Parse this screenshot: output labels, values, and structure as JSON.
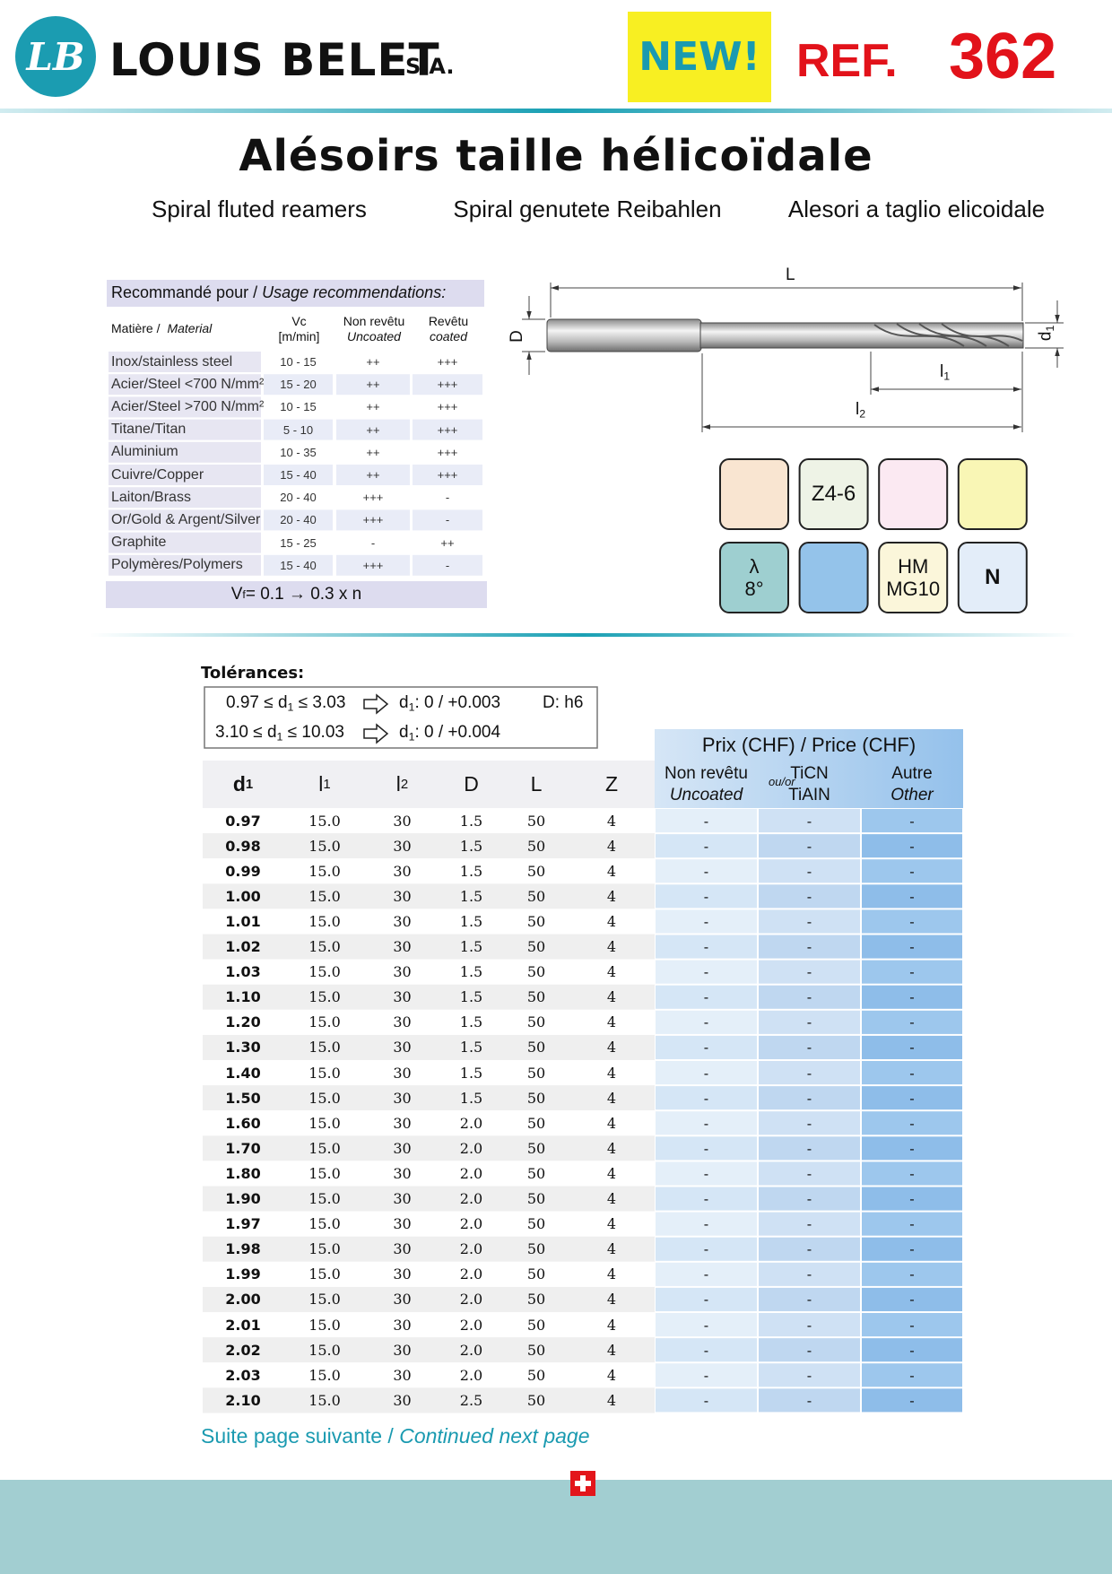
{
  "header": {
    "logo": "LB",
    "brand": "LOUIS BELET",
    "brand_suffix": "S.A.",
    "badge": "NEW!",
    "ref_label": "REF.",
    "ref_number": "362"
  },
  "title": "Alésoirs taille hélicoïdale",
  "subtitles": [
    "Spiral fluted reamers",
    "Spiral genutete Reibahlen",
    "Alesori a taglio elicoidale"
  ],
  "recommendations": {
    "heading": "Recommandé pour /",
    "heading_en": "Usage recommendations:",
    "columns": [
      [
        "Matière /",
        "Material"
      ],
      [
        "Vc",
        "[m/min]"
      ],
      [
        "Non revêtu",
        "Uncoated"
      ],
      [
        "Revêtu",
        "coated"
      ]
    ],
    "rows": [
      [
        "Inox/stainless steel",
        "10 - 15",
        "++",
        "+++"
      ],
      [
        "Acier/Steel <700 N/mm²",
        "15 - 20",
        "++",
        "+++"
      ],
      [
        "Acier/Steel >700 N/mm²",
        "10 - 15",
        "++",
        "+++"
      ],
      [
        "Titane/Titan",
        "5 - 10",
        "++",
        "+++"
      ],
      [
        "Aluminium",
        "10 - 35",
        "++",
        "+++"
      ],
      [
        "Cuivre/Copper",
        "15 - 40",
        "++",
        "+++"
      ],
      [
        "Laiton/Brass",
        "20 - 40",
        "+++",
        "-"
      ],
      [
        "Or/Gold & Argent/Silver",
        "20 - 40",
        "+++",
        "-"
      ],
      [
        "Graphite",
        "15 - 25",
        "-",
        "++"
      ],
      [
        "Polymères/Polymers",
        "15 - 40",
        "+++",
        "-"
      ]
    ],
    "feed": [
      "V",
      {
        "sub": "f"
      },
      " = 0.1 → 0.3 x n"
    ]
  },
  "dimensions": {
    "L": [
      "L"
    ],
    "D": [
      "D"
    ],
    "d1": [
      "d",
      {
        "sub": "1"
      }
    ],
    "l1": [
      "l",
      {
        "sub": "1"
      }
    ],
    "l2": [
      "l",
      {
        "sub": "2"
      }
    ]
  },
  "icons": [
    {
      "color": "#f9e5d1"
    },
    {
      "color": "#eef3e6",
      "lines": [
        "Z4-6"
      ]
    },
    {
      "color": "#fbe9f2"
    },
    {
      "color": "#f9f6b5"
    },
    {
      "color": "#9ecfd0",
      "lines": [
        "λ",
        "8°"
      ]
    },
    {
      "color": "#94c3ea"
    },
    {
      "color": "#fbf6da",
      "lines": [
        "HM",
        "MG10"
      ]
    },
    {
      "color": "#e3edf9",
      "lines": [
        "N"
      ]
    }
  ],
  "tolerances": {
    "title": "Tolérances:",
    "lines": [
      {
        "range": [
          "0.97 ≤ d",
          {
            "sub": "1"
          },
          " ≤ 3.03"
        ],
        "tolerance": [
          "d",
          {
            "sub": "1"
          },
          ": 0 / +0.003"
        ],
        "extra": "D: h6"
      },
      {
        "range": [
          "3.10 ≤ d",
          {
            "sub": "1"
          },
          " ≤ 10.03"
        ],
        "tolerance": [
          "d",
          {
            "sub": "1"
          },
          ": 0 / +0.004"
        ]
      }
    ]
  },
  "table": {
    "price_header": "Prix (CHF) / Price (CHF)",
    "columns": [
      [
        "d",
        {
          "sub": "1"
        }
      ],
      [
        "l",
        {
          "sub": "1"
        }
      ],
      [
        "l",
        {
          "sub": "2"
        }
      ],
      [
        "D"
      ],
      [
        "L"
      ],
      [
        "Z"
      ]
    ],
    "price_columns": [
      [
        "Non revêtu",
        "Uncoated"
      ],
      [
        "TiCN",
        "TiAIN"
      ],
      [
        "Autre",
        "Other"
      ]
    ],
    "or_label": "ou/or",
    "rows": [
      [
        "0.97",
        "15.0",
        "30",
        "1.5",
        "50",
        "4",
        "-",
        "-",
        "-"
      ],
      [
        "0.98",
        "15.0",
        "30",
        "1.5",
        "50",
        "4",
        "-",
        "-",
        "-"
      ],
      [
        "0.99",
        "15.0",
        "30",
        "1.5",
        "50",
        "4",
        "-",
        "-",
        "-"
      ],
      [
        "1.00",
        "15.0",
        "30",
        "1.5",
        "50",
        "4",
        "-",
        "-",
        "-"
      ],
      [
        "1.01",
        "15.0",
        "30",
        "1.5",
        "50",
        "4",
        "-",
        "-",
        "-"
      ],
      [
        "1.02",
        "15.0",
        "30",
        "1.5",
        "50",
        "4",
        "-",
        "-",
        "-"
      ],
      [
        "1.03",
        "15.0",
        "30",
        "1.5",
        "50",
        "4",
        "-",
        "-",
        "-"
      ],
      [
        "1.10",
        "15.0",
        "30",
        "1.5",
        "50",
        "4",
        "-",
        "-",
        "-"
      ],
      [
        "1.20",
        "15.0",
        "30",
        "1.5",
        "50",
        "4",
        "-",
        "-",
        "-"
      ],
      [
        "1.30",
        "15.0",
        "30",
        "1.5",
        "50",
        "4",
        "-",
        "-",
        "-"
      ],
      [
        "1.40",
        "15.0",
        "30",
        "1.5",
        "50",
        "4",
        "-",
        "-",
        "-"
      ],
      [
        "1.50",
        "15.0",
        "30",
        "1.5",
        "50",
        "4",
        "-",
        "-",
        "-"
      ],
      [
        "1.60",
        "15.0",
        "30",
        "2.0",
        "50",
        "4",
        "-",
        "-",
        "-"
      ],
      [
        "1.70",
        "15.0",
        "30",
        "2.0",
        "50",
        "4",
        "-",
        "-",
        "-"
      ],
      [
        "1.80",
        "15.0",
        "30",
        "2.0",
        "50",
        "4",
        "-",
        "-",
        "-"
      ],
      [
        "1.90",
        "15.0",
        "30",
        "2.0",
        "50",
        "4",
        "-",
        "-",
        "-"
      ],
      [
        "1.97",
        "15.0",
        "30",
        "2.0",
        "50",
        "4",
        "-",
        "-",
        "-"
      ],
      [
        "1.98",
        "15.0",
        "30",
        "2.0",
        "50",
        "4",
        "-",
        "-",
        "-"
      ],
      [
        "1.99",
        "15.0",
        "30",
        "2.0",
        "50",
        "4",
        "-",
        "-",
        "-"
      ],
      [
        "2.00",
        "15.0",
        "30",
        "2.0",
        "50",
        "4",
        "-",
        "-",
        "-"
      ],
      [
        "2.01",
        "15.0",
        "30",
        "2.0",
        "50",
        "4",
        "-",
        "-",
        "-"
      ],
      [
        "2.02",
        "15.0",
        "30",
        "2.0",
        "50",
        "4",
        "-",
        "-",
        "-"
      ],
      [
        "2.03",
        "15.0",
        "30",
        "2.0",
        "50",
        "4",
        "-",
        "-",
        "-"
      ],
      [
        "2.10",
        "15.0",
        "30",
        "2.5",
        "50",
        "4",
        "-",
        "-",
        "-"
      ]
    ]
  },
  "footer": {
    "continued": "Suite page suivante /",
    "continued_en": "Continued next page"
  }
}
